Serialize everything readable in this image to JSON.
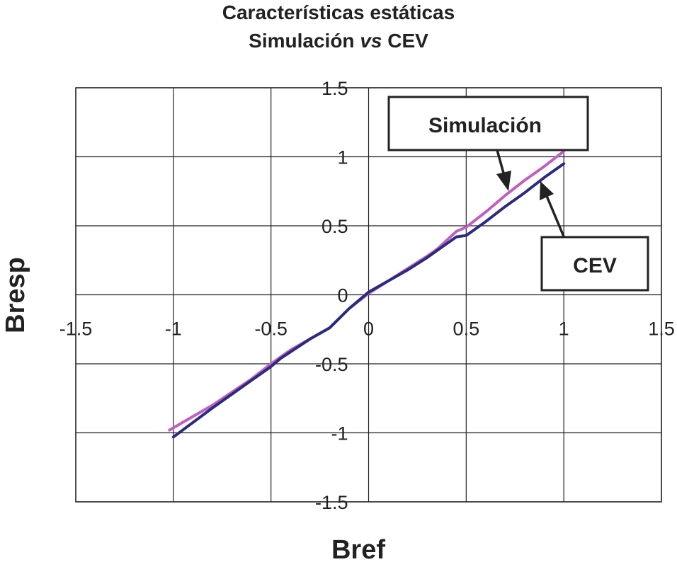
{
  "chart_data": {
    "type": "line",
    "title": "Características estáticas",
    "subtitle_prefix": "Simulación ",
    "subtitle_em": "vs",
    "subtitle_suffix": " CEV",
    "xlabel": "Bref",
    "ylabel": "Bresp",
    "xlim": [
      -1.5,
      1.5
    ],
    "ylim": [
      -1.5,
      1.5
    ],
    "x_ticks": [
      -1.5,
      -1,
      -0.5,
      0,
      0.5,
      1,
      1.5
    ],
    "y_ticks": [
      -1.5,
      -1,
      -0.5,
      0,
      0.5,
      1,
      1.5
    ],
    "x_tick_labels": [
      "-1.5",
      "-1",
      "-0.5",
      "0",
      "0.5",
      "1",
      "1.5"
    ],
    "y_tick_labels": [
      "-1.5",
      "-1",
      "-0.5",
      "0",
      "0.5",
      "1",
      "1.5"
    ],
    "grid": true,
    "series": [
      {
        "name": "Simulación",
        "color": "#c05fc0",
        "x": [
          -1.02,
          -0.8,
          -0.6,
          -0.5,
          -0.4,
          -0.3,
          -0.2,
          -0.1,
          0.0,
          0.1,
          0.2,
          0.3,
          0.35,
          0.45,
          0.5,
          0.6,
          0.7,
          0.8,
          0.9,
          1.0
        ],
        "y": [
          -0.98,
          -0.8,
          -0.61,
          -0.5,
          -0.4,
          -0.32,
          -0.24,
          -0.1,
          0.01,
          0.1,
          0.19,
          0.28,
          0.33,
          0.46,
          0.49,
          0.6,
          0.72,
          0.83,
          0.93,
          1.04
        ]
      },
      {
        "name": "CEV",
        "color": "#2a2a80",
        "x": [
          -1.0,
          -0.8,
          -0.6,
          -0.5,
          -0.45,
          -0.3,
          -0.2,
          -0.1,
          0.0,
          0.1,
          0.2,
          0.3,
          0.4,
          0.45,
          0.5,
          0.6,
          0.7,
          0.8,
          0.9,
          1.0
        ],
        "y": [
          -1.03,
          -0.82,
          -0.62,
          -0.52,
          -0.46,
          -0.32,
          -0.24,
          -0.1,
          0.02,
          0.1,
          0.18,
          0.27,
          0.37,
          0.42,
          0.43,
          0.53,
          0.64,
          0.74,
          0.85,
          0.95
        ]
      }
    ],
    "annotations": [
      {
        "text": "Simulación",
        "points_to_series": "Simulación"
      },
      {
        "text": "CEV",
        "points_to_series": "CEV"
      }
    ]
  }
}
